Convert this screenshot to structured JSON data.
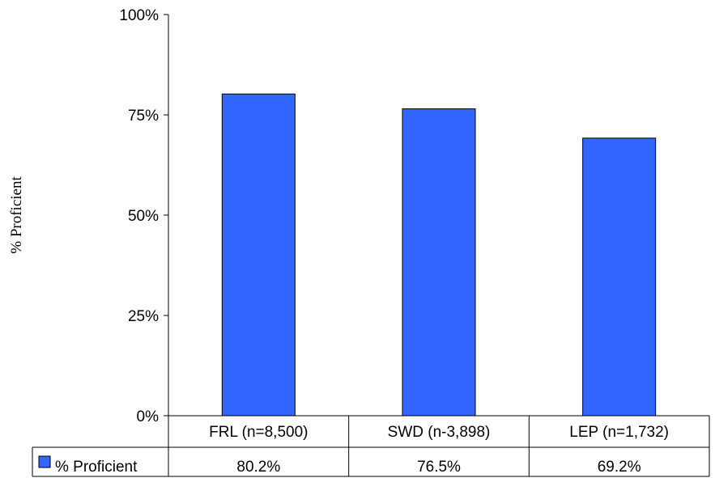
{
  "chart_data": {
    "type": "bar",
    "categories": [
      "FRL (n=8,500)",
      "SWD (n-3,898)",
      "LEP (n=1,732)"
    ],
    "series": [
      {
        "name": "% Proficient",
        "values": [
          80.2,
          76.5,
          69.2
        ],
        "color": "#3366ff"
      }
    ],
    "data_labels": [
      "80.2%",
      "76.5%",
      "69.2%"
    ],
    "ylabel": "% Proficient",
    "xlabel": "",
    "title": "",
    "ylim": [
      0,
      100
    ],
    "yticks": [
      "0%",
      "25%",
      "50%",
      "75%",
      "100%"
    ],
    "ytick_values": [
      0,
      25,
      50,
      75,
      100
    ],
    "grid": false,
    "legend": "data-table-left"
  }
}
